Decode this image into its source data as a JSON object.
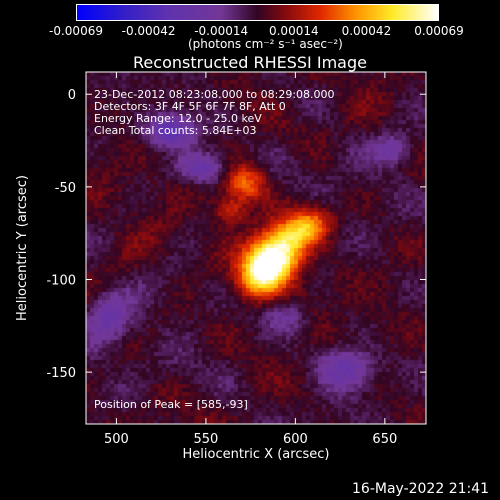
{
  "colorbar": {
    "ticks": [
      "-0.00069",
      "-0.00042",
      "-0.00014",
      "0.00014",
      "0.00042",
      "0.00069"
    ],
    "unit_label": "(photons cm⁻² s⁻¹ asec⁻²)",
    "colors": [
      "#0000ff",
      "#ffffff",
      "#ff0000",
      "#ffff00",
      "#ffffff"
    ]
  },
  "annotations": {
    "time_range": "23-Dec-2012 08:23:08.000 to 08:29:08.000",
    "detectors": "Detectors: 3F 4F 5F 6F 7F 8F, Att 0",
    "energy_range": "Energy Range: 12.0 - 25.0 keV",
    "clean_total": "Clean     Total counts: 5.84E+03",
    "peak": "Position of Peak = [585,-93]"
  },
  "footer": {
    "timestamp": "16-May-2022 21:41"
  },
  "chart_data": {
    "type": "heatmap",
    "title": "Reconstructed RHESSI Image",
    "xlabel": "Heliocentric X (arcsec)",
    "ylabel": "Heliocentric Y (arcsec)",
    "xlim": [
      483,
      673
    ],
    "ylim": [
      -178,
      12
    ],
    "xticks": [
      500,
      550,
      600,
      650
    ],
    "yticks": [
      0,
      -50,
      -100,
      -150
    ],
    "peak": [
      585,
      -93
    ],
    "value_range": [
      -0.00069,
      0.00069
    ],
    "colormap": "blue-white-red-yellow-white",
    "sources": [
      {
        "x": 589,
        "y": -86,
        "amp": 1.0,
        "sx": 14,
        "sy": 9,
        "angle_deg": 40
      },
      {
        "x": 583,
        "y": -97,
        "amp": 0.55,
        "sx": 10,
        "sy": 7,
        "angle_deg": 30
      },
      {
        "x": 572,
        "y": -48,
        "amp": 0.5,
        "sx": 8,
        "sy": 7,
        "angle_deg": 0
      },
      {
        "x": 563,
        "y": -63,
        "amp": 0.35,
        "sx": 6,
        "sy": 5,
        "angle_deg": 0
      },
      {
        "x": 608,
        "y": -71,
        "amp": 0.45,
        "sx": 9,
        "sy": 6,
        "angle_deg": 20
      },
      {
        "x": 530,
        "y": -20,
        "amp": -0.5,
        "sx": 9,
        "sy": 6,
        "angle_deg": 0
      },
      {
        "x": 548,
        "y": -40,
        "amp": -0.45,
        "sx": 10,
        "sy": 6,
        "angle_deg": 0
      },
      {
        "x": 628,
        "y": -148,
        "amp": -0.45,
        "sx": 11,
        "sy": 8,
        "angle_deg": 0
      },
      {
        "x": 655,
        "y": -30,
        "amp": -0.3,
        "sx": 8,
        "sy": 6,
        "angle_deg": 0
      },
      {
        "x": 595,
        "y": -120,
        "amp": -0.25,
        "sx": 9,
        "sy": 6,
        "angle_deg": 0
      },
      {
        "x": 495,
        "y": -120,
        "amp": -0.3,
        "sx": 8,
        "sy": 10,
        "angle_deg": 0
      }
    ],
    "background_seed": 23,
    "background_amp": 0.24
  }
}
